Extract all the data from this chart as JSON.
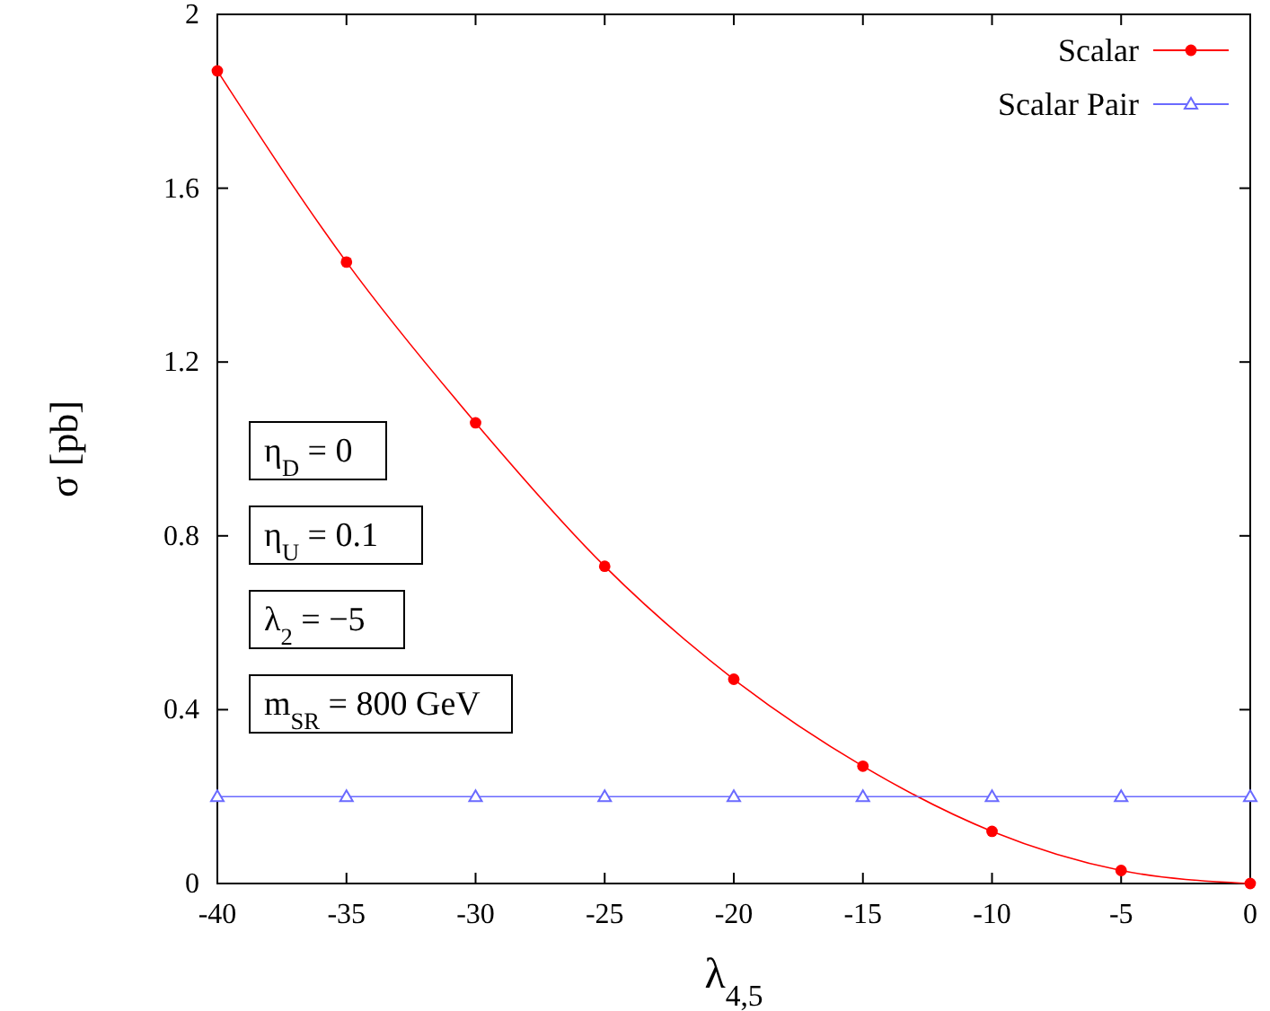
{
  "chart_data": {
    "type": "line",
    "xlabel": "λ$_{4,5}$",
    "ylabel": "σ  [pb]",
    "x": [
      -40,
      -35,
      -30,
      -25,
      -20,
      -15,
      -10,
      -5,
      0
    ],
    "series": [
      {
        "name": "Scalar",
        "color": "#ff0000",
        "marker": "circle",
        "values": [
          1.87,
          1.43,
          1.06,
          0.73,
          0.47,
          0.27,
          0.12,
          0.03,
          0
        ]
      },
      {
        "name": "Scalar Pair",
        "color": "#6a6aff",
        "marker": "triangle",
        "values": [
          0.2,
          0.2,
          0.2,
          0.2,
          0.2,
          0.2,
          0.2,
          0.2,
          0.2
        ]
      }
    ],
    "xlim": [
      -40,
      0
    ],
    "xticks": [
      -40,
      -35,
      -30,
      -25,
      -20,
      -15,
      -10,
      -5,
      0
    ],
    "ylim": [
      0,
      2
    ],
    "yticks": [
      0,
      {
        "value": 0.4,
        "label": "0.4"
      },
      {
        "value": 0.8,
        "label": "0.8"
      },
      {
        "value": 1.2,
        "label": "1.2"
      },
      {
        "value": 1.6,
        "label": "1.6"
      },
      2
    ],
    "annotations": [
      "η$_{D}$ = 0",
      "η$_{U}$ = 0.1",
      "λ$_{2}$ = −5",
      "m$_{SR}$ = 800 GeV"
    ],
    "legend": "top right",
    "grid": false,
    "line_style": "solid"
  }
}
